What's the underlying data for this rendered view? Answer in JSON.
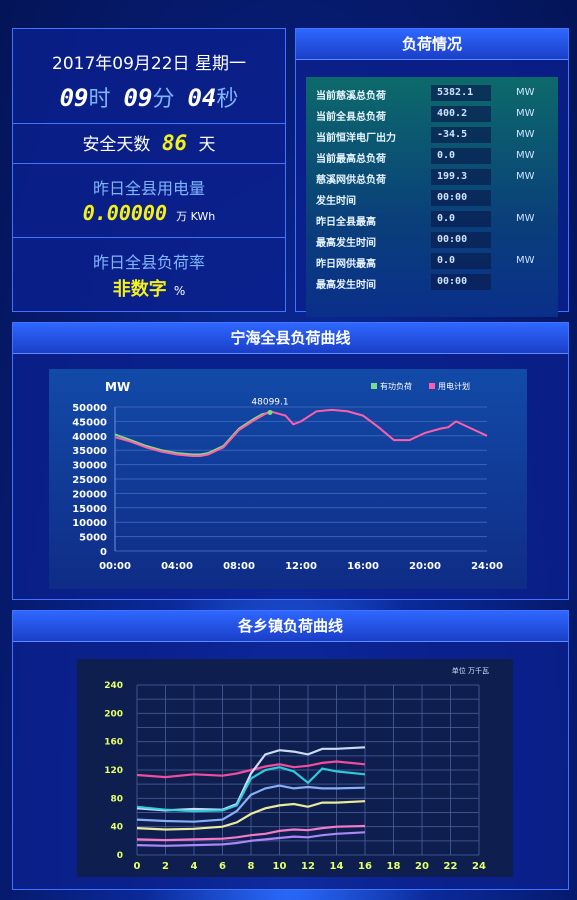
{
  "clock": {
    "date_line": "2017年09月22日  星期一",
    "hour": "09",
    "hour_unit": "时",
    "minute": "09",
    "minute_unit": "分",
    "second": "04",
    "second_unit": "秒"
  },
  "safety": {
    "prefix": "安全天数",
    "days": "86",
    "suffix": "天"
  },
  "usage": {
    "label": "昨日全县用电量",
    "value": "0.00000",
    "unit": "万 KWh"
  },
  "rate": {
    "label": "昨日全县负荷率",
    "value": "非数字",
    "unit": "%"
  },
  "load": {
    "title": "负荷情况",
    "rows": [
      {
        "name": "当前慈溪总负荷",
        "value": "5382.1",
        "unit": "MW"
      },
      {
        "name": "当前全县总负荷",
        "value": "400.2",
        "unit": "MW"
      },
      {
        "name": "当前恒洋电厂出力",
        "value": "-34.5",
        "unit": "MW"
      },
      {
        "name": "当前最高总负荷",
        "value": "0.0",
        "unit": "MW"
      },
      {
        "name": "慈溪网供总负荷",
        "value": "199.3",
        "unit": "MW"
      },
      {
        "name": "发生时间",
        "value": "00:00",
        "unit": ""
      },
      {
        "name": "昨日全县最高",
        "value": "0.0",
        "unit": "MW"
      },
      {
        "name": "最高发生时间",
        "value": "00:00",
        "unit": ""
      },
      {
        "name": "昨日网供最高",
        "value": "0.0",
        "unit": "MW"
      },
      {
        "name": "最高发生时间",
        "value": "00:00",
        "unit": ""
      }
    ]
  },
  "county_chart_title": "宁海全县负荷曲线",
  "town_chart_title": "各乡镇负荷曲线",
  "colors": {
    "actual": "#7fdc86",
    "plan": "#ff5fa8",
    "accent": "#2f67ff"
  },
  "chart_data": [
    {
      "type": "line",
      "title": "",
      "ylabel": "MW",
      "xlabel": "",
      "ylim": [
        0,
        50000
      ],
      "yticks": [
        0,
        5000,
        10000,
        15000,
        20000,
        25000,
        30000,
        35000,
        40000,
        45000,
        50000
      ],
      "xticks": [
        "00:00",
        "04:00",
        "08:00",
        "12:00",
        "16:00",
        "20:00",
        "24:00"
      ],
      "xlim": [
        0,
        24
      ],
      "legend": "top-right",
      "peak_label": "48099.1",
      "series": [
        {
          "name": "有功负荷",
          "color": "#7fdc86",
          "x": [
            0,
            1,
            2,
            3,
            4,
            5,
            5.5,
            6,
            7,
            8,
            9,
            9.5,
            10
          ],
          "y": [
            40500,
            38500,
            36500,
            35000,
            34000,
            33500,
            33500,
            34000,
            36500,
            42500,
            46000,
            47500,
            48099
          ]
        },
        {
          "name": "用电计划",
          "color": "#ff5fa8",
          "x": [
            0,
            1,
            2,
            3,
            4,
            5,
            5.5,
            6,
            7,
            8,
            9,
            10,
            11,
            11.5,
            12,
            13,
            14,
            15,
            16,
            17,
            18,
            19,
            20,
            21,
            21.5,
            22,
            23,
            24
          ],
          "y": [
            39500,
            38000,
            36000,
            34500,
            33500,
            33000,
            33000,
            33500,
            36000,
            42000,
            45500,
            48500,
            47000,
            44000,
            45000,
            48500,
            49000,
            48500,
            47000,
            43000,
            38500,
            38500,
            41000,
            42500,
            43000,
            45000,
            42500,
            40000
          ]
        }
      ]
    },
    {
      "type": "line",
      "title": "",
      "ylabel": "",
      "unit_label": "单位  万千瓦",
      "ylim": [
        0,
        240
      ],
      "yticks": [
        0,
        20,
        40,
        60,
        80,
        100,
        120,
        140,
        160,
        180,
        200,
        220,
        240
      ],
      "ytick_labels": [
        "0",
        "",
        "40",
        "",
        "80",
        "",
        "120",
        "",
        "160",
        "",
        "200",
        "",
        "240"
      ],
      "xticks": [
        0,
        2,
        4,
        6,
        8,
        10,
        12,
        14,
        16,
        18,
        20,
        22,
        24
      ],
      "xlim": [
        0,
        24
      ],
      "series": [
        {
          "color": "#ff4fa0",
          "x": [
            0,
            2,
            4,
            6,
            7,
            8,
            9,
            10,
            11,
            12,
            13,
            14,
            16
          ],
          "y": [
            113,
            110,
            114,
            112,
            115,
            120,
            125,
            128,
            124,
            126,
            130,
            132,
            128
          ]
        },
        {
          "color": "#d7e7ff",
          "x": [
            0,
            2,
            4,
            6,
            7,
            8,
            9,
            10,
            11,
            12,
            13,
            14,
            16
          ],
          "y": [
            66,
            63,
            65,
            64,
            72,
            115,
            142,
            148,
            146,
            142,
            150,
            150,
            152
          ]
        },
        {
          "color": "#34d3e0",
          "x": [
            0,
            2,
            4,
            6,
            7,
            8,
            9,
            10,
            11,
            12,
            13,
            14,
            16
          ],
          "y": [
            68,
            64,
            62,
            63,
            70,
            108,
            120,
            124,
            118,
            102,
            122,
            118,
            114
          ]
        },
        {
          "color": "#8fb6ff",
          "x": [
            0,
            2,
            4,
            6,
            7,
            8,
            9,
            10,
            11,
            12,
            13,
            14,
            16
          ],
          "y": [
            50,
            48,
            47,
            50,
            62,
            85,
            94,
            98,
            94,
            96,
            94,
            94,
            95
          ]
        },
        {
          "color": "#f8f6a0",
          "x": [
            0,
            2,
            4,
            6,
            7,
            8,
            9,
            10,
            11,
            12,
            13,
            14,
            16
          ],
          "y": [
            38,
            36,
            37,
            40,
            46,
            58,
            66,
            70,
            72,
            68,
            74,
            74,
            76
          ]
        },
        {
          "color": "#ff7fd0",
          "x": [
            0,
            2,
            4,
            6,
            7,
            8,
            9,
            10,
            11,
            12,
            13,
            14,
            16
          ],
          "y": [
            22,
            21,
            22,
            23,
            25,
            28,
            30,
            34,
            36,
            35,
            38,
            40,
            41
          ]
        },
        {
          "color": "#b48cff",
          "x": [
            0,
            2,
            4,
            6,
            7,
            8,
            9,
            10,
            11,
            12,
            13,
            14,
            16
          ],
          "y": [
            14,
            13,
            14,
            15,
            17,
            20,
            22,
            24,
            26,
            25,
            28,
            30,
            32
          ]
        }
      ]
    }
  ]
}
